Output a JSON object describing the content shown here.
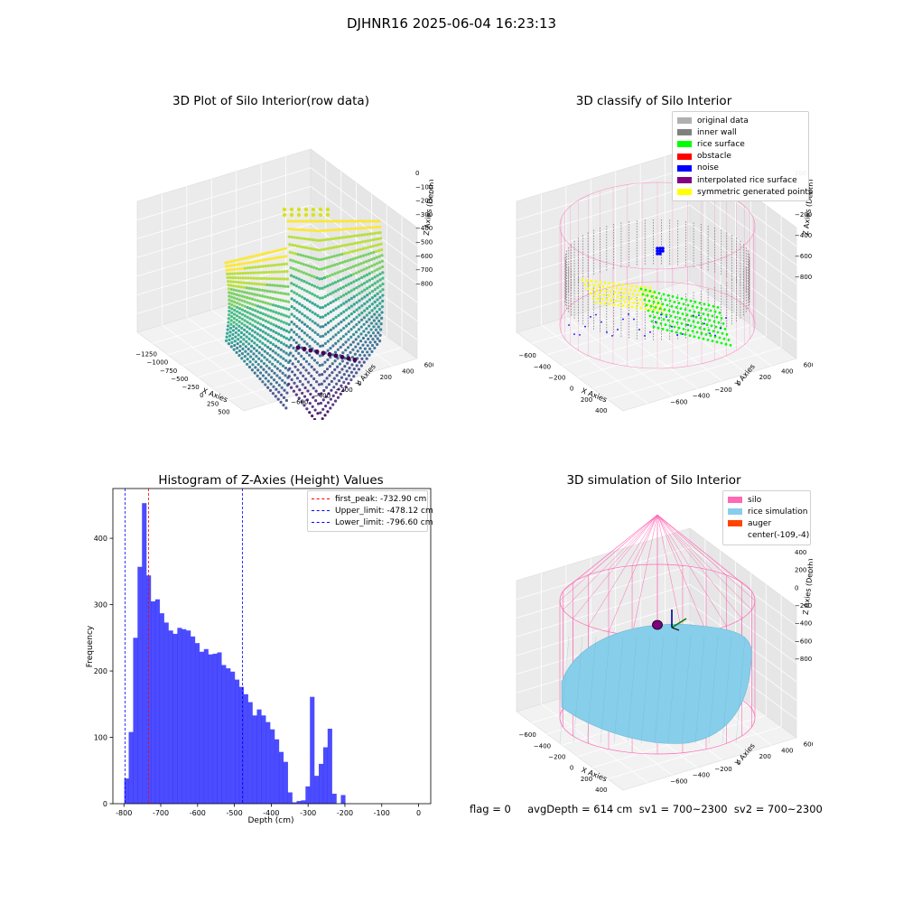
{
  "figure": {
    "suptitle": "DJHNR16 2025-06-04 16:23:13",
    "footer": "flag = 0     avgDepth = 614 cm  sv1 = 700~2300  sv2 = 700~2300"
  },
  "colors": {
    "hist_bar": "#0000ff",
    "first_peak_line": "#ff0000",
    "limit_lines": "#0000ff",
    "silo_wire": "#ff69b4",
    "rice_sim": "#87ceeb",
    "auger": "#ff4500"
  },
  "chart_data": [
    {
      "type": "scatter3d",
      "title": "3D Plot of Silo Interior(row data)",
      "xlabel": "X Axies",
      "ylabel": "Y Axies",
      "zlabel": "Z Axies (Depth)",
      "xticks": [
        "−1250",
        "−1000",
        "−750",
        "−500",
        "−250",
        "0",
        "250",
        "500"
      ],
      "yticks": [
        "−600",
        "−400",
        "−200",
        "0",
        "200",
        "400",
        "600"
      ],
      "zticks": [
        "0",
        "−100",
        "−200",
        "−300",
        "−400",
        "−500",
        "−600",
        "−700",
        "−800"
      ],
      "colormap": "viridis"
    },
    {
      "type": "scatter3d",
      "title": "3D classify of Silo Interior",
      "xlabel": "X Axies",
      "ylabel": "Y Axies",
      "zlabel": "Z Axies (Depth)",
      "xticks": [
        "−600",
        "−400",
        "−200",
        "0",
        "200",
        "400"
      ],
      "yticks": [
        "−600",
        "−400",
        "−200",
        "0",
        "200",
        "400",
        "600"
      ],
      "zticks": [
        "200",
        "0",
        "−200",
        "−400",
        "−600",
        "−800"
      ],
      "legend": [
        {
          "label": "original data",
          "color": "#b0b0b0"
        },
        {
          "label": "inner wall",
          "color": "#808080"
        },
        {
          "label": "rice surface",
          "color": "#00ff00"
        },
        {
          "label": "obstacle",
          "color": "#ff0000"
        },
        {
          "label": "noise",
          "color": "#0000ff"
        },
        {
          "label": "interpolated rice surface",
          "color": "#800080"
        },
        {
          "label": "symmetric generated points",
          "color": "#ffff00"
        }
      ],
      "legend_loc": "upper-right"
    },
    {
      "type": "bar",
      "title": "Histogram of Z-Axies (Height) Values",
      "xlabel": "Depth (cm)",
      "ylabel": "Frequency",
      "xlim": [
        -830,
        33
      ],
      "ylim": [
        0,
        475
      ],
      "xticks": [
        -800,
        -700,
        -600,
        -500,
        -400,
        -300,
        -200,
        -100,
        0
      ],
      "yticks": [
        0,
        100,
        200,
        300,
        400
      ],
      "bin_start": -799,
      "bin_width": 12,
      "values": [
        38,
        108,
        250,
        357,
        453,
        344,
        305,
        308,
        287,
        273,
        261,
        256,
        265,
        263,
        261,
        252,
        242,
        229,
        233,
        225,
        226,
        228,
        209,
        204,
        199,
        187,
        176,
        165,
        153,
        133,
        142,
        133,
        123,
        112,
        97,
        78,
        63,
        17,
        2,
        4,
        5,
        26,
        161,
        42,
        60,
        85,
        113,
        15,
        0,
        13
      ],
      "vlines": [
        {
          "x": -732.9,
          "label": "first_peak: -732.90 cm",
          "color": "#ff0000"
        },
        {
          "x": -478.12,
          "label": "Upper_limit: -478.12 cm",
          "color": "#0000ff"
        },
        {
          "x": -796.6,
          "label": "Lower_limit: -796.60 cm",
          "color": "#0000ff"
        }
      ],
      "legend_loc": "upper-right"
    },
    {
      "type": "surface3d",
      "title": "3D simulation of Silo Interior",
      "xlabel": "X Axies",
      "ylabel": "Y Axies",
      "zlabel": "Z Axies (Depth)",
      "xticks": [
        "−600",
        "−400",
        "−200",
        "0",
        "200",
        "400"
      ],
      "yticks": [
        "−600",
        "−400",
        "−200",
        "0",
        "200",
        "400",
        "600"
      ],
      "zticks": [
        "400",
        "200",
        "0",
        "−200",
        "−400",
        "−600",
        "−800"
      ],
      "legend": [
        {
          "label": "silo",
          "color": "#ff69b4"
        },
        {
          "label": "rice simulation",
          "color": "#87ceeb"
        },
        {
          "label": "auger",
          "color": "#ff4500"
        },
        {
          "label": "center(-109,-4)",
          "color": ""
        }
      ],
      "legend_loc": "upper-right"
    }
  ]
}
